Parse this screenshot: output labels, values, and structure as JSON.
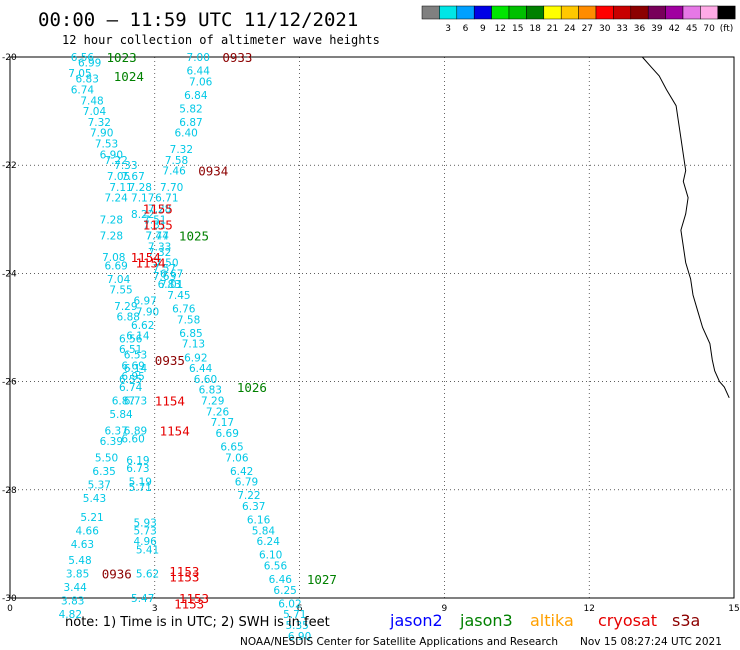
{
  "header": {
    "title": "00:00 – 11:59 UTC 11/12/2021",
    "subtitle": "12 hour collection of altimeter wave heights"
  },
  "legend": {
    "colors": [
      "#808080",
      "#00e6e6",
      "#00a0ff",
      "#0000e6",
      "#00e600",
      "#00c000",
      "#008000",
      "#ffff00",
      "#ffc800",
      "#ff8c00",
      "#ff0000",
      "#c80000",
      "#8c0000",
      "#78005a",
      "#a000a0",
      "#e678e6",
      "#ffaae6",
      "#000000"
    ],
    "labels": [
      "3",
      "6",
      "9",
      "12",
      "15",
      "18",
      "21",
      "24",
      "27",
      "30",
      "33",
      "36",
      "39",
      "42",
      "45",
      "70"
    ],
    "unit": "(ft)"
  },
  "chart_data": {
    "type": "scatter",
    "xlim": [
      0,
      15
    ],
    "ylim": [
      -30,
      -20
    ],
    "x_ticks": [
      "0",
      "3",
      "6",
      "9",
      "12",
      "15"
    ],
    "y_ticks": [
      "-20",
      "-22",
      "-24",
      "-26",
      "-28",
      "-30"
    ],
    "grid": true,
    "swh_color": "#00c8e6",
    "track_a": [
      {
        "x": 1.5,
        "y": -20.0,
        "v": "6.56"
      },
      {
        "x": 1.65,
        "y": -20.1,
        "v": "6.99"
      },
      {
        "x": 1.45,
        "y": -20.3,
        "v": "7.05"
      },
      {
        "x": 1.6,
        "y": -20.4,
        "v": "6.83"
      },
      {
        "x": 1.5,
        "y": -20.6,
        "v": "6.74"
      },
      {
        "x": 1.7,
        "y": -20.8,
        "v": "7.48"
      },
      {
        "x": 1.75,
        "y": -21.0,
        "v": "7.04"
      },
      {
        "x": 1.85,
        "y": -21.2,
        "v": "7.32"
      },
      {
        "x": 1.9,
        "y": -21.4,
        "v": "7.90"
      },
      {
        "x": 2.0,
        "y": -21.6,
        "v": "7.53"
      },
      {
        "x": 2.1,
        "y": -21.8,
        "v": "6.90"
      },
      {
        "x": 2.2,
        "y": -21.9,
        "v": "7.22"
      },
      {
        "x": 2.25,
        "y": -22.2,
        "v": "7.05"
      },
      {
        "x": 2.3,
        "y": -22.4,
        "v": "7.11"
      },
      {
        "x": 2.2,
        "y": -22.6,
        "v": "7.24"
      },
      {
        "x": 2.1,
        "y": -23.0,
        "v": "7.28"
      },
      {
        "x": 2.1,
        "y": -23.3,
        "v": "7.28"
      },
      {
        "x": 2.15,
        "y": -23.7,
        "v": "7.08"
      },
      {
        "x": 2.2,
        "y": -23.85,
        "v": "6.69"
      },
      {
        "x": 2.25,
        "y": -24.1,
        "v": "7.04"
      },
      {
        "x": 2.3,
        "y": -24.3,
        "v": "7.55"
      },
      {
        "x": 2.4,
        "y": -24.6,
        "v": "7.29"
      },
      {
        "x": 2.45,
        "y": -24.8,
        "v": "6.88"
      },
      {
        "x": 2.5,
        "y": -25.2,
        "v": "6.56"
      },
      {
        "x": 2.5,
        "y": -25.4,
        "v": "6.51"
      },
      {
        "x": 2.55,
        "y": -25.7,
        "v": "6.69"
      },
      {
        "x": 2.55,
        "y": -25.9,
        "v": "6.95"
      },
      {
        "x": 2.5,
        "y": -26.1,
        "v": "6.74"
      },
      {
        "x": 2.35,
        "y": -26.35,
        "v": "6.87"
      },
      {
        "x": 2.3,
        "y": -26.6,
        "v": "5.84"
      },
      {
        "x": 2.2,
        "y": -26.9,
        "v": "6.37"
      },
      {
        "x": 2.1,
        "y": -27.1,
        "v": "6.39"
      },
      {
        "x": 2.0,
        "y": -27.4,
        "v": "5.50"
      },
      {
        "x": 1.95,
        "y": -27.65,
        "v": "6.35"
      },
      {
        "x": 1.85,
        "y": -27.9,
        "v": "5.37"
      },
      {
        "x": 1.75,
        "y": -28.15,
        "v": "5.43"
      },
      {
        "x": 1.7,
        "y": -28.5,
        "v": "5.21"
      },
      {
        "x": 1.6,
        "y": -28.75,
        "v": "4.66"
      },
      {
        "x": 1.5,
        "y": -29.0,
        "v": "4.63"
      },
      {
        "x": 1.45,
        "y": -29.3,
        "v": "5.48"
      },
      {
        "x": 1.4,
        "y": -29.55,
        "v": "3.85"
      },
      {
        "x": 1.35,
        "y": -29.8,
        "v": "3.44"
      },
      {
        "x": 1.3,
        "y": -30.05,
        "v": "3.83"
      },
      {
        "x": 1.25,
        "y": -30.3,
        "v": "4.82"
      }
    ],
    "track_b": [
      {
        "x": 2.4,
        "y": -22.0,
        "v": "7.33"
      },
      {
        "x": 2.55,
        "y": -22.2,
        "v": "7.67"
      },
      {
        "x": 2.7,
        "y": -22.4,
        "v": "7.28"
      },
      {
        "x": 2.75,
        "y": -22.6,
        "v": "7.17"
      },
      {
        "x": 2.75,
        "y": -22.9,
        "v": "8.22"
      },
      {
        "x": 3.0,
        "y": -23.0,
        "v": "7.51"
      },
      {
        "x": 3.05,
        "y": -23.3,
        "v": "7.47"
      },
      {
        "x": 3.1,
        "y": -23.5,
        "v": "7.33"
      },
      {
        "x": 3.2,
        "y": -23.9,
        "v": "7.57"
      },
      {
        "x": 3.2,
        "y": -24.05,
        "v": "7.63"
      },
      {
        "x": 3.3,
        "y": -24.2,
        "v": "6.83"
      },
      {
        "x": 2.8,
        "y": -24.5,
        "v": "6.97"
      },
      {
        "x": 2.85,
        "y": -24.7,
        "v": "7.90"
      },
      {
        "x": 2.75,
        "y": -24.95,
        "v": "6.62"
      },
      {
        "x": 2.65,
        "y": -25.15,
        "v": "6.14"
      },
      {
        "x": 2.6,
        "y": -25.5,
        "v": "6.53"
      },
      {
        "x": 2.6,
        "y": -25.75,
        "v": "6.14"
      },
      {
        "x": 2.5,
        "y": -25.95,
        "v": "6.55"
      },
      {
        "x": 2.6,
        "y": -26.35,
        "v": "6.73"
      },
      {
        "x": 2.6,
        "y": -26.9,
        "v": "6.89"
      },
      {
        "x": 2.55,
        "y": -27.05,
        "v": "6.60"
      },
      {
        "x": 2.65,
        "y": -27.45,
        "v": "6.19"
      },
      {
        "x": 2.65,
        "y": -27.6,
        "v": "6.73"
      },
      {
        "x": 2.7,
        "y": -27.85,
        "v": "5.19"
      },
      {
        "x": 2.7,
        "y": -27.95,
        "v": "5.71"
      },
      {
        "x": 2.8,
        "y": -28.6,
        "v": "5.93"
      },
      {
        "x": 2.8,
        "y": -28.75,
        "v": "5.73"
      },
      {
        "x": 2.8,
        "y": -28.95,
        "v": "4.96"
      },
      {
        "x": 2.85,
        "y": -29.1,
        "v": "5.41"
      },
      {
        "x": 2.85,
        "y": -29.55,
        "v": "5.62"
      },
      {
        "x": 2.75,
        "y": -30.0,
        "v": "5.47"
      }
    ],
    "track_c": [
      {
        "x": 3.9,
        "y": -20.0,
        "v": "7.00"
      },
      {
        "x": 3.9,
        "y": -20.25,
        "v": "6.44"
      },
      {
        "x": 3.95,
        "y": -20.45,
        "v": "7.06"
      },
      {
        "x": 3.85,
        "y": -20.7,
        "v": "6.84"
      },
      {
        "x": 3.75,
        "y": -20.95,
        "v": "5.82"
      },
      {
        "x": 3.75,
        "y": -21.2,
        "v": "6.87"
      },
      {
        "x": 3.65,
        "y": -21.4,
        "v": "6.40"
      },
      {
        "x": 3.55,
        "y": -21.7,
        "v": "7.32"
      },
      {
        "x": 3.45,
        "y": -21.9,
        "v": "7.58"
      },
      {
        "x": 3.4,
        "y": -22.1,
        "v": "7.46"
      },
      {
        "x": 3.35,
        "y": -22.4,
        "v": "7.70"
      },
      {
        "x": 3.25,
        "y": -22.6,
        "v": "6.71"
      },
      {
        "x": 3.1,
        "y": -22.8,
        "v": "7.28"
      },
      {
        "x": 3.0,
        "y": -23.1,
        "v": "7.31"
      },
      {
        "x": 3.05,
        "y": -23.3,
        "v": "7.74"
      },
      {
        "x": 3.1,
        "y": -23.6,
        "v": "7.32"
      },
      {
        "x": 3.25,
        "y": -23.8,
        "v": "7.50"
      },
      {
        "x": 3.35,
        "y": -24.0,
        "v": "6.67"
      },
      {
        "x": 3.35,
        "y": -24.2,
        "v": "7.01"
      },
      {
        "x": 3.5,
        "y": -24.4,
        "v": "7.45"
      },
      {
        "x": 3.6,
        "y": -24.65,
        "v": "6.76"
      },
      {
        "x": 3.7,
        "y": -24.85,
        "v": "7.58"
      },
      {
        "x": 3.75,
        "y": -25.1,
        "v": "6.85"
      },
      {
        "x": 3.8,
        "y": -25.3,
        "v": "7.13"
      },
      {
        "x": 3.85,
        "y": -25.55,
        "v": "6.92"
      },
      {
        "x": 3.95,
        "y": -25.75,
        "v": "6.44"
      },
      {
        "x": 4.05,
        "y": -25.95,
        "v": "6.60"
      },
      {
        "x": 4.15,
        "y": -26.15,
        "v": "6.83"
      },
      {
        "x": 4.2,
        "y": -26.35,
        "v": "7.29"
      },
      {
        "x": 4.3,
        "y": -26.55,
        "v": "7.26"
      },
      {
        "x": 4.4,
        "y": -26.75,
        "v": "7.17"
      },
      {
        "x": 4.5,
        "y": -26.95,
        "v": "6.69"
      },
      {
        "x": 4.6,
        "y": -27.2,
        "v": "6.65"
      },
      {
        "x": 4.7,
        "y": -27.4,
        "v": "7.06"
      },
      {
        "x": 4.8,
        "y": -27.65,
        "v": "6.42"
      },
      {
        "x": 4.9,
        "y": -27.85,
        "v": "6.79"
      },
      {
        "x": 4.95,
        "y": -28.1,
        "v": "7.22"
      },
      {
        "x": 5.05,
        "y": -28.3,
        "v": "6.37"
      },
      {
        "x": 5.15,
        "y": -28.55,
        "v": "6.16"
      },
      {
        "x": 5.25,
        "y": -28.75,
        "v": "5.84"
      },
      {
        "x": 5.35,
        "y": -28.95,
        "v": "6.24"
      },
      {
        "x": 5.4,
        "y": -29.2,
        "v": "6.10"
      },
      {
        "x": 5.5,
        "y": -29.4,
        "v": "6.56"
      },
      {
        "x": 5.6,
        "y": -29.65,
        "v": "6.46"
      },
      {
        "x": 5.7,
        "y": -29.85,
        "v": "6.25"
      },
      {
        "x": 5.8,
        "y": -30.1,
        "v": "6.02"
      },
      {
        "x": 5.9,
        "y": -30.3,
        "v": "5.71"
      },
      {
        "x": 5.95,
        "y": -30.5,
        "v": "5.35"
      },
      {
        "x": 6.0,
        "y": -30.7,
        "v": "6.90"
      }
    ],
    "time_labels": [
      {
        "x": 2.0,
        "y": -20.0,
        "v": "1023",
        "c": "#008000"
      },
      {
        "x": 2.15,
        "y": -20.35,
        "v": "1024",
        "c": "#008000"
      },
      {
        "x": 4.4,
        "y": -20.0,
        "v": "0933",
        "c": "#8c0000"
      },
      {
        "x": 3.9,
        "y": -22.1,
        "v": "0934",
        "c": "#8c0000"
      },
      {
        "x": 2.75,
        "y": -22.8,
        "v": "1155",
        "c": "#e60000"
      },
      {
        "x": 2.75,
        "y": -23.1,
        "v": "1155",
        "c": "#e60000"
      },
      {
        "x": 3.5,
        "y": -23.3,
        "v": "1025",
        "c": "#008000"
      },
      {
        "x": 2.5,
        "y": -23.7,
        "v": "1154",
        "c": "#e60000"
      },
      {
        "x": 2.6,
        "y": -23.8,
        "v": "1154",
        "c": "#e60000"
      },
      {
        "x": 3.0,
        "y": -25.6,
        "v": "0935",
        "c": "#8c0000"
      },
      {
        "x": 4.7,
        "y": -26.1,
        "v": "1026",
        "c": "#008000"
      },
      {
        "x": 3.0,
        "y": -26.35,
        "v": "1154",
        "c": "#e60000"
      },
      {
        "x": 3.1,
        "y": -26.9,
        "v": "1154",
        "c": "#e60000"
      },
      {
        "x": 6.15,
        "y": -29.65,
        "v": "1027",
        "c": "#008000"
      },
      {
        "x": 1.9,
        "y": -29.55,
        "v": "0936",
        "c": "#8c0000"
      },
      {
        "x": 3.3,
        "y": -29.5,
        "v": "1153",
        "c": "#e60000"
      },
      {
        "x": 3.3,
        "y": -29.6,
        "v": "1153",
        "c": "#e60000"
      },
      {
        "x": 3.5,
        "y": -30.0,
        "v": "1153",
        "c": "#e60000"
      },
      {
        "x": 3.4,
        "y": -30.1,
        "v": "1153",
        "c": "#e60000"
      }
    ],
    "coastline": [
      [
        13.1,
        -20.0
      ],
      [
        13.3,
        -20.2
      ],
      [
        13.45,
        -20.35
      ],
      [
        13.6,
        -20.6
      ],
      [
        13.8,
        -20.9
      ],
      [
        13.85,
        -21.2
      ],
      [
        13.9,
        -21.5
      ],
      [
        13.95,
        -21.8
      ],
      [
        14.0,
        -22.1
      ],
      [
        13.95,
        -22.3
      ],
      [
        14.05,
        -22.6
      ],
      [
        14.0,
        -22.9
      ],
      [
        13.9,
        -23.2
      ],
      [
        13.95,
        -23.5
      ],
      [
        14.0,
        -23.8
      ],
      [
        14.1,
        -24.1
      ],
      [
        14.15,
        -24.4
      ],
      [
        14.25,
        -24.7
      ],
      [
        14.35,
        -25.0
      ],
      [
        14.5,
        -25.3
      ],
      [
        14.55,
        -25.6
      ],
      [
        14.6,
        -25.8
      ],
      [
        14.7,
        -26.0
      ],
      [
        14.8,
        -26.1
      ],
      [
        14.9,
        -26.3
      ]
    ]
  },
  "footer": {
    "note": "note: 1) Time is in UTC; 2) SWH is in feet",
    "missions": [
      {
        "name": "jason2",
        "color": "#0000ff"
      },
      {
        "name": "jason3",
        "color": "#008000"
      },
      {
        "name": "altika",
        "color": "#ffa000"
      },
      {
        "name": "cryosat",
        "color": "#e60000"
      },
      {
        "name": "s3a",
        "color": "#8c0000"
      }
    ],
    "credit": "NOAA/NESDIS Center for Satellite Applications and Research",
    "timestamp": "Nov 15 08:27:24 UTC 2021"
  }
}
